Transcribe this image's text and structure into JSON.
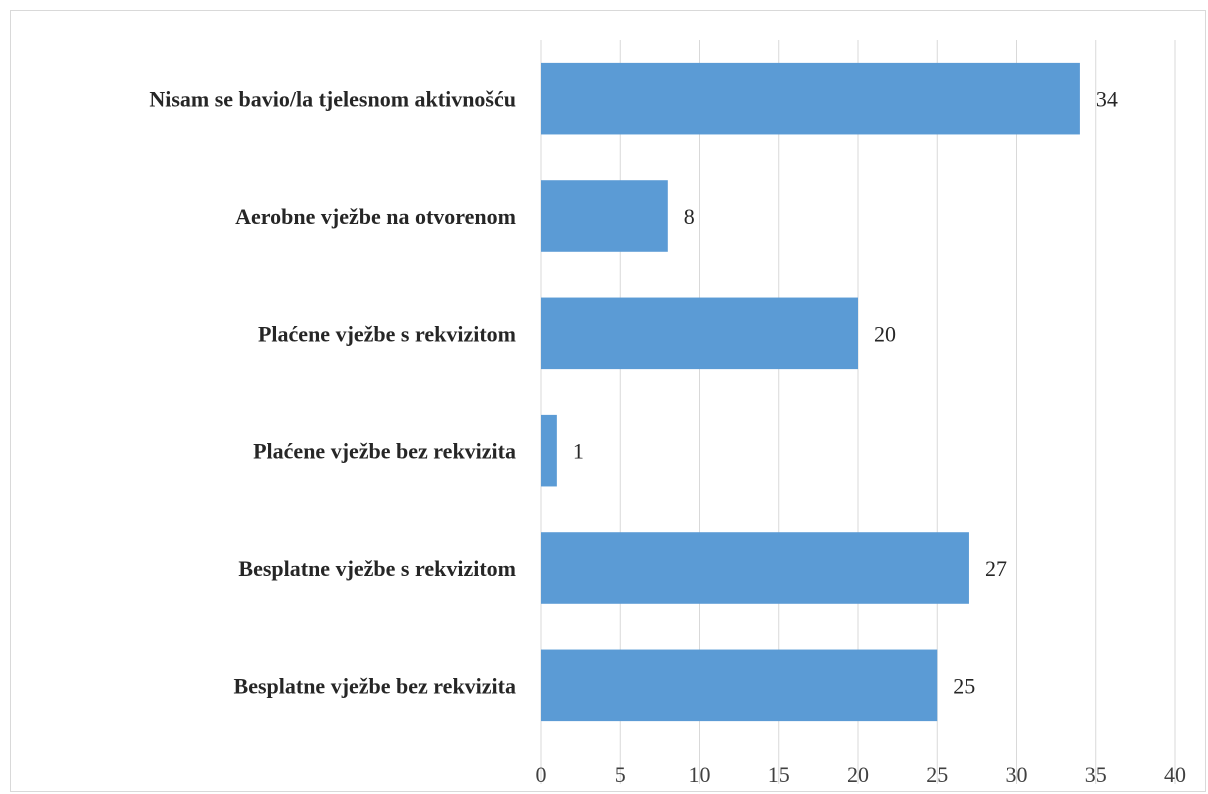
{
  "chart_data": {
    "type": "bar",
    "orientation": "horizontal",
    "categories": [
      "Nisam se bavio/la tjelesnom aktivnošću",
      "Aerobne vježbe na otvorenom",
      "Plaćene vježbe s rekvizitom",
      "Plaćene vježbe bez rekvizita",
      "Besplatne vježbe s rekvizitom",
      "Besplatne vježbe bez rekvizita"
    ],
    "values": [
      34,
      8,
      20,
      1,
      27,
      25
    ],
    "value_labels": [
      "34",
      "8",
      "20",
      "1",
      "27",
      "25"
    ],
    "xlim": [
      0,
      40
    ],
    "xticks": [
      0,
      5,
      10,
      15,
      20,
      25,
      30,
      35,
      40
    ],
    "xtick_labels": [
      "0",
      "5",
      "10",
      "15",
      "20",
      "25",
      "30",
      "35",
      "40"
    ],
    "title": "",
    "xlabel": "",
    "ylabel": "",
    "grid": "vertical",
    "legend": "none",
    "colors": {
      "bar": "#5b9bd5",
      "grid": "#d9d9d9",
      "text": "#262626"
    }
  }
}
